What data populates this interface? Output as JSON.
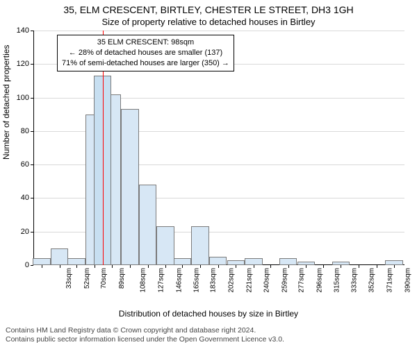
{
  "title_main": "35, ELM CRESCENT, BIRTLEY, CHESTER LE STREET, DH3 1GH",
  "title_sub": "Size of property relative to detached houses in Birtley",
  "y_label": "Number of detached properties",
  "x_label": "Distribution of detached houses by size in Birtley",
  "attribution_line1": "Contains HM Land Registry data © Crown copyright and database right 2024.",
  "attribution_line2": "Contains public sector information licensed under the Open Government Licence v3.0.",
  "chart": {
    "type": "histogram",
    "ylim": [
      0,
      140
    ],
    "ytick_step": 20,
    "yticks": [
      0,
      20,
      40,
      60,
      80,
      100,
      120,
      140
    ],
    "background_color": "#ffffff",
    "grid_color": "#d9d9d9",
    "axis_color": "#000000",
    "bar_fill": "#d7e7f5",
    "bar_stroke": "#7a7a7a",
    "marker_color": "#ff0000",
    "marker_x_sqm": 98,
    "x_min_sqm": 24,
    "x_max_sqm": 420,
    "x_tick_labels": [
      "33sqm",
      "52sqm",
      "70sqm",
      "89sqm",
      "108sqm",
      "127sqm",
      "146sqm",
      "165sqm",
      "183sqm",
      "202sqm",
      "221sqm",
      "240sqm",
      "259sqm",
      "277sqm",
      "296sqm",
      "315sqm",
      "333sqm",
      "352sqm",
      "371sqm",
      "390sqm",
      "409sqm"
    ],
    "x_tick_sqm": [
      33,
      52,
      70,
      89,
      108,
      127,
      146,
      165,
      183,
      202,
      221,
      240,
      259,
      277,
      296,
      315,
      333,
      352,
      371,
      390,
      409
    ],
    "bars": [
      {
        "center_sqm": 33,
        "value": 4
      },
      {
        "center_sqm": 52,
        "value": 10
      },
      {
        "center_sqm": 70,
        "value": 4
      },
      {
        "center_sqm": 89,
        "value": 90
      },
      {
        "center_sqm": 108,
        "value": 102
      },
      {
        "center_sqm": 127,
        "value": 93
      },
      {
        "center_sqm": 146,
        "value": 48
      },
      {
        "center_sqm": 165,
        "value": 23
      },
      {
        "center_sqm": 183,
        "value": 4
      },
      {
        "center_sqm": 202,
        "value": 23
      },
      {
        "center_sqm": 221,
        "value": 5
      },
      {
        "center_sqm": 240,
        "value": 3
      },
      {
        "center_sqm": 259,
        "value": 4
      },
      {
        "center_sqm": 277,
        "value": 0
      },
      {
        "center_sqm": 296,
        "value": 4
      },
      {
        "center_sqm": 315,
        "value": 2
      },
      {
        "center_sqm": 333,
        "value": 0
      },
      {
        "center_sqm": 352,
        "value": 2
      },
      {
        "center_sqm": 371,
        "value": 0
      },
      {
        "center_sqm": 390,
        "value": 0
      },
      {
        "center_sqm": 409,
        "value": 3
      }
    ],
    "highlight_bar_index": 3,
    "highlight_bar": {
      "center_sqm": 98,
      "value": 113,
      "fill": "#c7dff1"
    },
    "bar_width_sqm": 18.8
  },
  "callout": {
    "line1": "35 ELM CRESCENT: 98sqm",
    "line2": "← 28% of detached houses are smaller (137)",
    "line3": "71% of semi-detached houses are larger (350) →"
  }
}
